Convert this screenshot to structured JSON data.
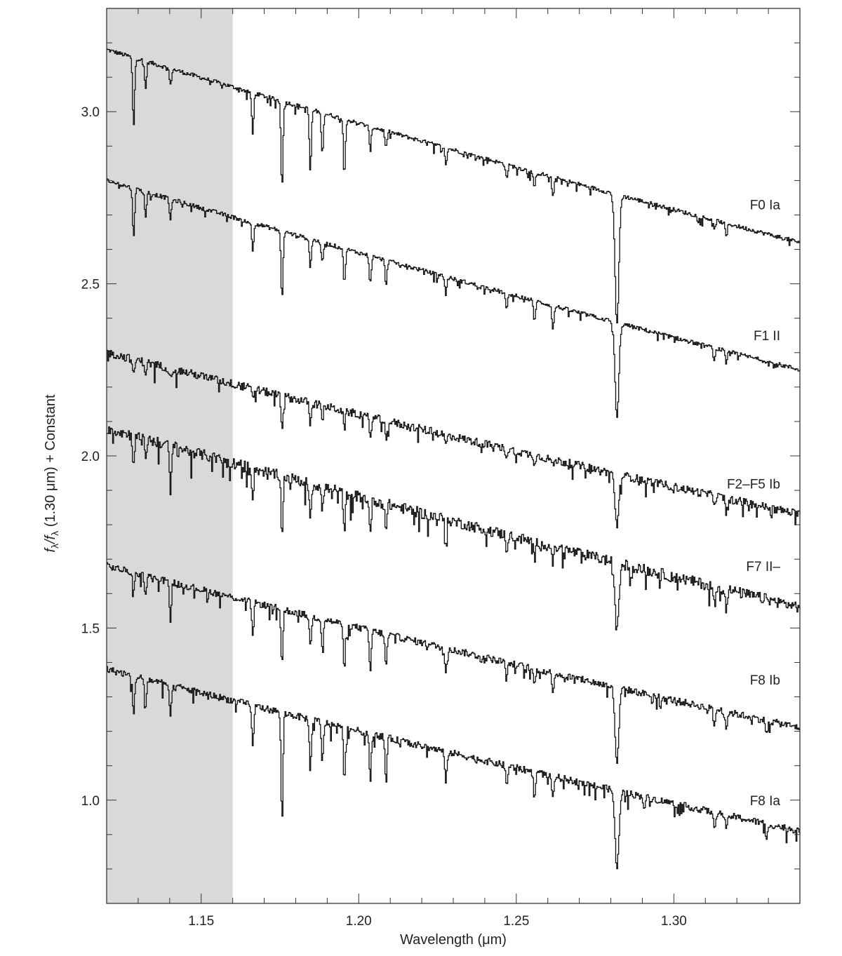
{
  "chart_data": {
    "type": "line",
    "xlabel": "Wavelength (μm)",
    "ylabel_parts": [
      "f",
      "λ",
      "/f",
      "λ",
      " (1.30 μm) + Constant"
    ],
    "xlim": [
      1.12,
      1.34
    ],
    "ylim": [
      0.7,
      3.3
    ],
    "x_ticks": [
      "1.15",
      "1.20",
      "1.25",
      "1.30"
    ],
    "y_ticks": [
      "1.0",
      "1.5",
      "2.0",
      "2.5",
      "3.0"
    ],
    "shaded_region": [
      1.12,
      1.16
    ],
    "colors": {
      "line": "#111111",
      "shade": "#d9d9db",
      "frame": "#333333"
    },
    "absorption_lines": [
      1.1284,
      1.1322,
      1.1401,
      1.1662,
      1.1755,
      1.1845,
      1.1883,
      1.1953,
      1.2035,
      1.2085,
      1.2275,
      1.2468,
      1.2556,
      1.2615,
      1.2818,
      1.2905,
      1.3127,
      1.3165,
      1.3293
    ],
    "series": [
      {
        "name": "F0 Ia",
        "label_y": 2.73,
        "start_y": 3.18,
        "end_y": 2.62,
        "noise": 0.006,
        "lines": [
          [
            1.1284,
            0.2
          ],
          [
            1.1322,
            0.08
          ],
          [
            1.1401,
            0.05
          ],
          [
            1.1662,
            0.12
          ],
          [
            1.1755,
            0.25
          ],
          [
            1.1845,
            0.18
          ],
          [
            1.1883,
            0.12
          ],
          [
            1.1953,
            0.15
          ],
          [
            1.2035,
            0.07
          ],
          [
            1.2085,
            0.05
          ],
          [
            1.2275,
            0.05
          ],
          [
            1.2468,
            0.04
          ],
          [
            1.2556,
            0.05
          ],
          [
            1.2615,
            0.06
          ],
          [
            1.2818,
            0.38
          ],
          [
            1.3127,
            0.03
          ],
          [
            1.3165,
            0.04
          ]
        ]
      },
      {
        "name": "F1 II",
        "label_y": 2.35,
        "start_y": 2.8,
        "end_y": 2.25,
        "noise": 0.006,
        "lines": [
          [
            1.1284,
            0.14
          ],
          [
            1.1322,
            0.07
          ],
          [
            1.1401,
            0.06
          ],
          [
            1.1662,
            0.08
          ],
          [
            1.1755,
            0.2
          ],
          [
            1.1845,
            0.08
          ],
          [
            1.1883,
            0.06
          ],
          [
            1.1953,
            0.1
          ],
          [
            1.2035,
            0.08
          ],
          [
            1.2085,
            0.07
          ],
          [
            1.2275,
            0.05
          ],
          [
            1.2468,
            0.05
          ],
          [
            1.2556,
            0.06
          ],
          [
            1.2615,
            0.07
          ],
          [
            1.2818,
            0.28
          ],
          [
            1.3127,
            0.04
          ],
          [
            1.3165,
            0.04
          ]
        ]
      },
      {
        "name": "F2–F5 Ib",
        "label_y": 1.92,
        "start_y": 2.3,
        "end_y": 1.83,
        "noise": 0.012,
        "lines": [
          [
            1.1284,
            0.05
          ],
          [
            1.1322,
            0.03
          ],
          [
            1.1401,
            0.03
          ],
          [
            1.1662,
            0.03
          ],
          [
            1.1755,
            0.1
          ],
          [
            1.1845,
            0.05
          ],
          [
            1.1883,
            0.04
          ],
          [
            1.1953,
            0.05
          ],
          [
            1.2035,
            0.06
          ],
          [
            1.2085,
            0.05
          ],
          [
            1.2275,
            0.03
          ],
          [
            1.2468,
            0.02
          ],
          [
            1.2556,
            0.02
          ],
          [
            1.2615,
            0.02
          ],
          [
            1.2818,
            0.15
          ],
          [
            1.3127,
            0.02
          ],
          [
            1.3165,
            0.02
          ]
        ]
      },
      {
        "name": "F7 II–",
        "label_y": 1.68,
        "start_y": 2.08,
        "end_y": 1.56,
        "noise": 0.016,
        "lines": [
          [
            1.1284,
            0.08
          ],
          [
            1.1322,
            0.05
          ],
          [
            1.1401,
            0.12
          ],
          [
            1.1662,
            0.08
          ],
          [
            1.1755,
            0.16
          ],
          [
            1.1845,
            0.1
          ],
          [
            1.1883,
            0.07
          ],
          [
            1.1953,
            0.12
          ],
          [
            1.2035,
            0.1
          ],
          [
            1.2085,
            0.08
          ],
          [
            1.2275,
            0.06
          ],
          [
            1.2468,
            0.04
          ],
          [
            1.2556,
            0.05
          ],
          [
            1.2615,
            0.05
          ],
          [
            1.2818,
            0.2
          ],
          [
            1.3127,
            0.05
          ],
          [
            1.3165,
            0.04
          ]
        ]
      },
      {
        "name": "F8 Ib",
        "label_y": 1.35,
        "start_y": 1.68,
        "end_y": 1.21,
        "noise": 0.01,
        "lines": [
          [
            1.1284,
            0.06
          ],
          [
            1.1322,
            0.05
          ],
          [
            1.1401,
            0.1
          ],
          [
            1.1662,
            0.1
          ],
          [
            1.1755,
            0.16
          ],
          [
            1.1845,
            0.09
          ],
          [
            1.1883,
            0.08
          ],
          [
            1.1953,
            0.13
          ],
          [
            1.2035,
            0.12
          ],
          [
            1.2085,
            0.1
          ],
          [
            1.2275,
            0.07
          ],
          [
            1.2468,
            0.05
          ],
          [
            1.2556,
            0.05
          ],
          [
            1.2615,
            0.05
          ],
          [
            1.2818,
            0.22
          ],
          [
            1.3127,
            0.05
          ],
          [
            1.3165,
            0.05
          ],
          [
            1.3293,
            0.04
          ]
        ]
      },
      {
        "name": "F8 Ia",
        "label_y": 1.0,
        "start_y": 1.38,
        "end_y": 0.91,
        "noise": 0.01,
        "lines": [
          [
            1.1284,
            0.12
          ],
          [
            1.1322,
            0.08
          ],
          [
            1.1401,
            0.1
          ],
          [
            1.1662,
            0.12
          ],
          [
            1.1755,
            0.3
          ],
          [
            1.1845,
            0.15
          ],
          [
            1.1883,
            0.12
          ],
          [
            1.1953,
            0.15
          ],
          [
            1.2035,
            0.14
          ],
          [
            1.2085,
            0.12
          ],
          [
            1.2275,
            0.1
          ],
          [
            1.2468,
            0.06
          ],
          [
            1.2556,
            0.07
          ],
          [
            1.2615,
            0.07
          ],
          [
            1.2818,
            0.23
          ],
          [
            1.2905,
            0.03
          ],
          [
            1.3127,
            0.05
          ],
          [
            1.3165,
            0.05
          ],
          [
            1.3293,
            0.05
          ]
        ]
      }
    ]
  }
}
